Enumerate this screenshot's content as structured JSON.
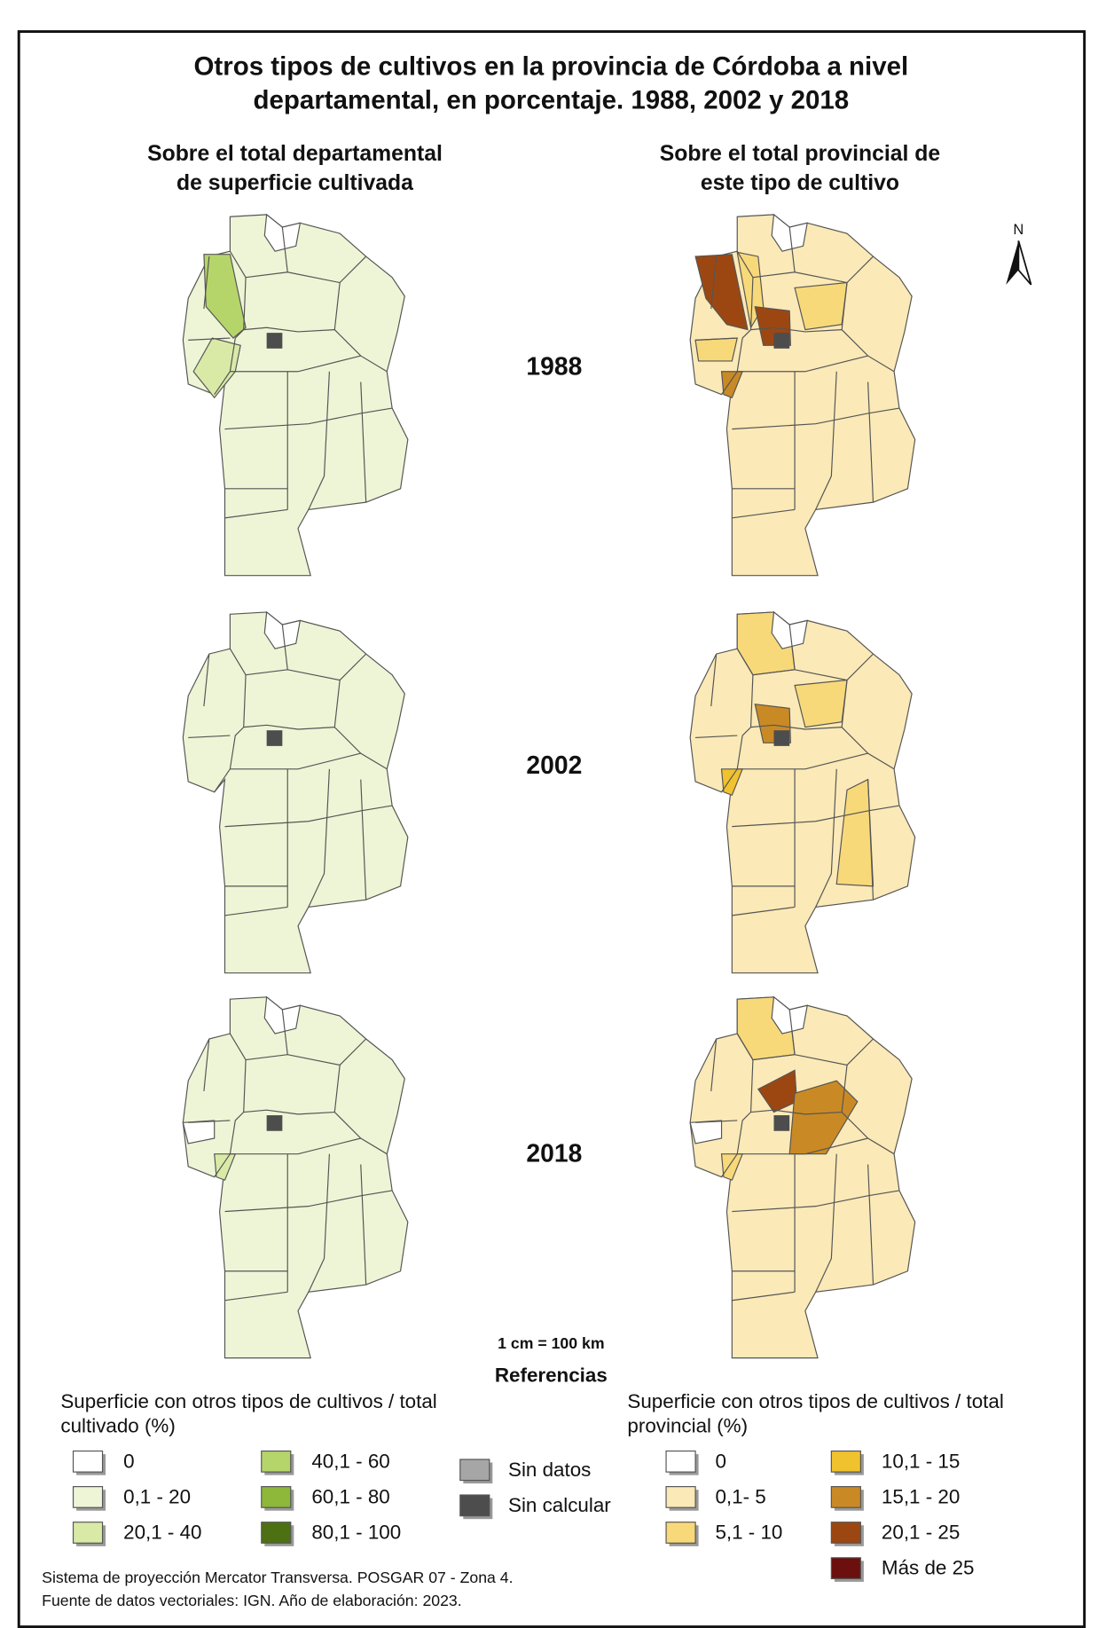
{
  "title": [
    "Otros tipos de cultivos en la provincia de Córdoba a nivel",
    "departamental, en porcentaje. 1988, 2002 y 2018"
  ],
  "columns": [
    [
      "Sobre el total departamental",
      "de superficie cultivada"
    ],
    [
      "Sobre el total provincial de",
      "este tipo de cultivo"
    ]
  ],
  "years": [
    "1988",
    "2002",
    "2018"
  ],
  "north": "N",
  "scale": "1 cm = 100 km",
  "legend_heading": "Referencias",
  "legend_left": {
    "title": [
      "Superficie con otros tipos de cultivos / total",
      "cultivado (%)"
    ],
    "items": [
      {
        "label": "0",
        "color": "#ffffff"
      },
      {
        "label": "0,1 - 20",
        "color": "#eef5d6"
      },
      {
        "label": "20,1 - 40",
        "color": "#d9eaa7"
      },
      {
        "label": "40,1 - 60",
        "color": "#b5d56a"
      },
      {
        "label": "60,1 - 80",
        "color": "#8db83a"
      },
      {
        "label": "80,1 - 100",
        "color": "#4d7012"
      }
    ]
  },
  "legend_middle": {
    "items": [
      {
        "label": "Sin datos",
        "color": "#a6a6a6"
      },
      {
        "label": "Sin calcular",
        "color": "#4d4d4d"
      }
    ]
  },
  "legend_right": {
    "title": [
      "Superficie con otros tipos de cultivos / total",
      "provincial (%)"
    ],
    "items": [
      {
        "label": "0",
        "color": "#ffffff"
      },
      {
        "label": "0,1- 5",
        "color": "#fbe9b7"
      },
      {
        "label": "5,1 - 10",
        "color": "#f8d97a"
      },
      {
        "label": "10,1 - 15",
        "color": "#f0c22e"
      },
      {
        "label": "15,1 - 20",
        "color": "#c98a25"
      },
      {
        "label": "20,1 - 25",
        "color": "#9c4712"
      },
      {
        "label": "Más de 25",
        "color": "#6b0f0f"
      }
    ]
  },
  "footer": [
    "Sistema de proyección Mercator Transversa. POSGAR 07 - Zona 4.",
    "Fuente de datos vectoriales: IGN. Año de elaboración: 2023."
  ]
}
